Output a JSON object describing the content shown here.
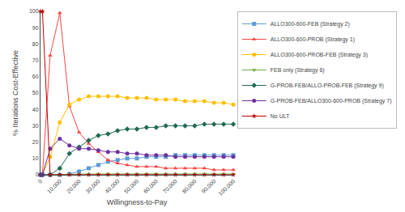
{
  "chart_data": {
    "type": "line",
    "xlabel": "Willingness-to-Pay",
    "ylabel": "% Iterations Cost-Effective",
    "x": [
      0,
      1000,
      5000,
      10000,
      15000,
      20000,
      25000,
      30000,
      35000,
      40000,
      45000,
      50000,
      55000,
      60000,
      65000,
      70000,
      75000,
      80000,
      85000,
      90000,
      95000,
      100000
    ],
    "xlim": [
      0,
      100000
    ],
    "ylim": [
      0,
      100
    ],
    "xticks": [
      0,
      {
        "value": 10000,
        "label": "10,000"
      },
      {
        "value": 20000,
        "label": "20,000"
      },
      {
        "value": 30000,
        "label": "30,000"
      },
      {
        "value": 40000,
        "label": "40,000"
      },
      {
        "value": 50000,
        "label": "50,000"
      },
      {
        "value": 60000,
        "label": "60,000"
      },
      {
        "value": 70000,
        "label": "70,000"
      },
      {
        "value": 80000,
        "label": "80,000"
      },
      {
        "value": 90000,
        "label": "90,000"
      },
      {
        "value": 100000,
        "label": "100,000"
      }
    ],
    "yticks": [
      0,
      10,
      20,
      30,
      40,
      50,
      60,
      70,
      80,
      90,
      100
    ],
    "grid": false,
    "legend": "right",
    "series": [
      {
        "name": "ALLO300-600-FEB (Strategy 2)",
        "color": "#5B9BD5",
        "marker": "square",
        "line_style": "solid",
        "values": [
          0,
          0,
          0,
          0,
          0.5,
          2,
          4,
          6,
          8,
          9,
          10,
          10,
          11,
          11,
          11,
          12,
          12,
          12,
          12,
          12,
          12,
          12
        ]
      },
      {
        "name": "ALLO300-600-PROB (Strategy 1)",
        "color": "#FF4444",
        "marker": "triangle-up",
        "line_style": "solid",
        "values": [
          0,
          0,
          73,
          99,
          42,
          26,
          19,
          14,
          9,
          7,
          6,
          5,
          5,
          5,
          4,
          4,
          4,
          4,
          4,
          3,
          3,
          3
        ]
      },
      {
        "name": "ALLO300-600-PROB-FEB (Strategy 3)",
        "color": "#FFC000",
        "marker": "circle",
        "line_style": "solid",
        "values": [
          0,
          0,
          11,
          32,
          43,
          46,
          48,
          48,
          48,
          48,
          47,
          47,
          47,
          46,
          46,
          46,
          45,
          45,
          45,
          44,
          44,
          43
        ]
      },
      {
        "name": "FEB only (Strategy 6)",
        "color": "#70AD47",
        "marker": "triangle-down",
        "line_style": "solid",
        "values": [
          0,
          0,
          0,
          0,
          0.2,
          0.4,
          0.5,
          0.5,
          0.5,
          0.5,
          0.5,
          0.5,
          0.5,
          0.5,
          0.5,
          0.5,
          0.5,
          0.5,
          0.5,
          0.5,
          0.5,
          0.5
        ]
      },
      {
        "name": "G-PROB-FEB/ALLO-PROB-FEB (Strategy 9)",
        "color": "#1F6B4E",
        "marker": "diamond",
        "line_style": "solid",
        "values": [
          0,
          0,
          0,
          4,
          13,
          17,
          21,
          24,
          25,
          27,
          28,
          28,
          29,
          29,
          30,
          30,
          30,
          30,
          31,
          31,
          31,
          31
        ]
      },
      {
        "name": "G-PROB-FEB/ALLO300-600-PROB (Strategy 7)",
        "color": "#7030A0",
        "marker": "circle",
        "line_style": "solid",
        "values": [
          0,
          0,
          16,
          22,
          18,
          16,
          16,
          15,
          14,
          14,
          13,
          13,
          12,
          12,
          12,
          11,
          11,
          11,
          11,
          11,
          11,
          11
        ]
      },
      {
        "name": "No ULT",
        "color": "#C00000",
        "marker": "star",
        "line_style": "solid",
        "values": [
          100,
          100,
          0,
          0,
          0,
          0,
          0,
          0,
          0,
          0,
          0,
          0,
          0,
          0,
          0,
          0,
          0,
          0,
          0,
          0,
          0,
          0
        ]
      }
    ]
  }
}
